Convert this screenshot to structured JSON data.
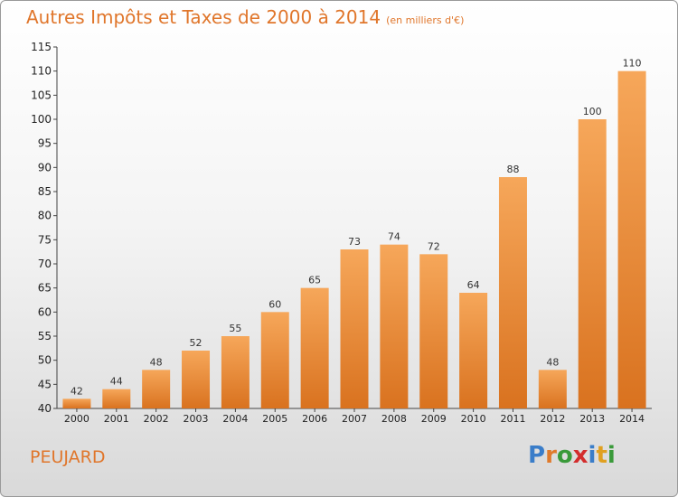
{
  "title": "Autres Impôts et Taxes de 2000 à 2014",
  "subtitle": "(en milliers d'€)",
  "commune": "PEUJARD",
  "logo": {
    "letters": [
      "P",
      "r",
      "o",
      "x",
      "i",
      "t",
      "i"
    ],
    "colors": [
      "#3a7dc9",
      "#e07a2b",
      "#3a9a3a",
      "#d32d2d",
      "#3a7dc9",
      "#e0a020",
      "#3a9a3a"
    ]
  },
  "colors": {
    "bar_light": "#f6a75a",
    "bar_dark": "#d9721f",
    "accent": "#e0762b"
  },
  "chart_data": {
    "type": "bar",
    "title": "Autres Impôts et Taxes de 2000 à 2014",
    "subtitle": "(en milliers d'€)",
    "categories": [
      "2000",
      "2001",
      "2002",
      "2003",
      "2004",
      "2005",
      "2006",
      "2007",
      "2008",
      "2009",
      "2010",
      "2011",
      "2012",
      "2013",
      "2014"
    ],
    "values": [
      42,
      44,
      48,
      52,
      55,
      60,
      65,
      73,
      74,
      72,
      64,
      88,
      48,
      100,
      110
    ],
    "ylim": [
      40,
      115
    ],
    "yticks": [
      40,
      45,
      50,
      55,
      60,
      65,
      70,
      75,
      80,
      85,
      90,
      95,
      100,
      105,
      110,
      115
    ],
    "grid": false,
    "legend": "none"
  }
}
